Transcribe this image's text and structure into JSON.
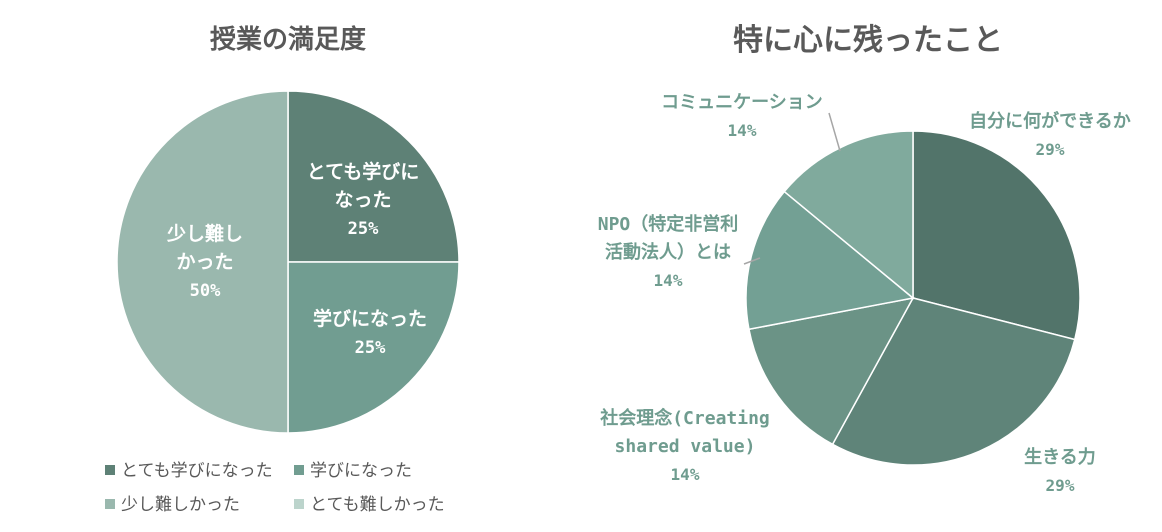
{
  "chart_data": [
    {
      "type": "pie",
      "title": "授業の満足度",
      "categories": [
        "とても学びになった",
        "学びになった",
        "少し難しかった",
        "とても難しかった"
      ],
      "values": [
        25,
        25,
        50,
        0
      ],
      "data_labels": [
        {
          "lines": [
            "とても学びに",
            "なった"
          ],
          "pct": "25%"
        },
        {
          "lines": [
            "学びになった"
          ],
          "pct": "25%"
        },
        {
          "lines": [
            "少し難し",
            "かった"
          ],
          "pct": "50%"
        },
        {
          "lines": [],
          "pct": ""
        }
      ],
      "colors": [
        "#5e8176",
        "#719d91",
        "#9ab8ae",
        "#bcd4cc"
      ],
      "legend": "bottom"
    },
    {
      "type": "pie",
      "title": "特に心に残ったこと",
      "categories": [
        "自分に何ができるか",
        "生きる力",
        "社会理念(Creating shared value)",
        "NPO（特定非営利活動法人）とは",
        "コミュニケーション"
      ],
      "values": [
        29,
        29,
        14,
        14,
        14
      ],
      "data_labels": [
        {
          "lines": [
            "自分に何ができるか"
          ],
          "pct": "29%"
        },
        {
          "lines": [
            "生きる力"
          ],
          "pct": "29%"
        },
        {
          "lines": [
            "社会理念(Creating",
            "shared value)"
          ],
          "pct": "14%"
        },
        {
          "lines": [
            "NPO（特定非営利",
            "活動法人）とは"
          ],
          "pct": "14%"
        },
        {
          "lines": [
            "コミュニケーション"
          ],
          "pct": "14%"
        }
      ],
      "colors": [
        "#52746a",
        "#5f8479",
        "#6b9386",
        "#73a094",
        "#80aa9d"
      ],
      "label_color": "#6f9c8f",
      "legend": "none"
    }
  ]
}
